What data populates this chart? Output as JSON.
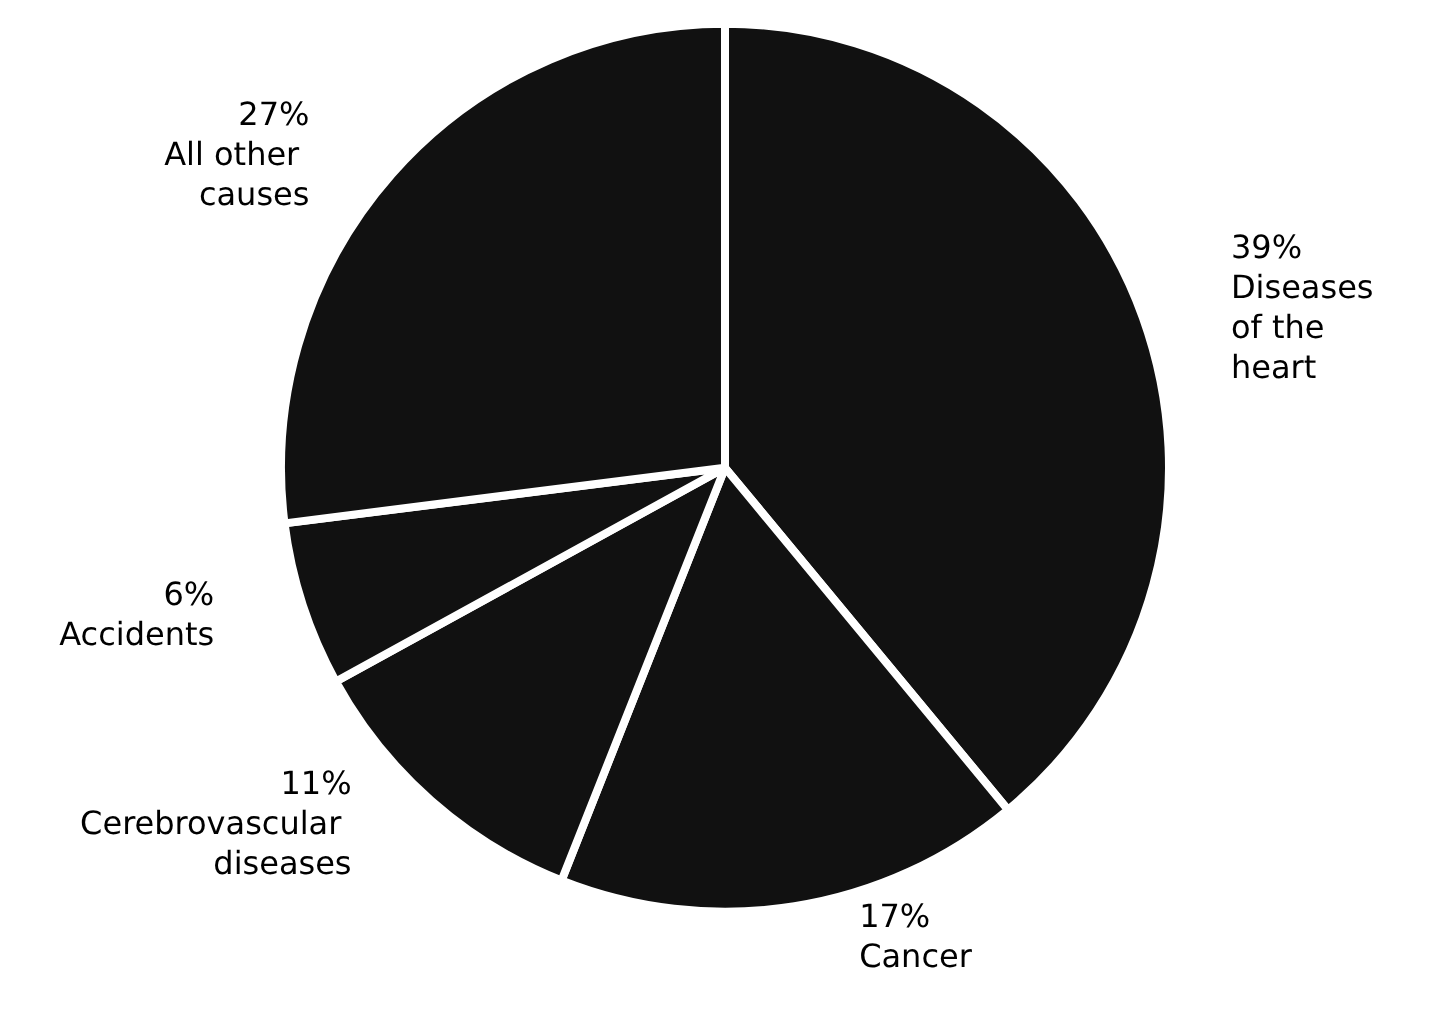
{
  "chart_data": {
    "type": "pie",
    "categories": [
      "Diseases of the heart",
      "Cancer",
      "Cerebrovascular diseases",
      "Accidents",
      "All other causes"
    ],
    "values": [
      39,
      17,
      11,
      6,
      27
    ],
    "value_labels": [
      "39%",
      "17%",
      "11%",
      "6%",
      "27%"
    ],
    "colors": [
      "#111111",
      "#111111",
      "#111111",
      "#111111",
      "#111111"
    ]
  }
}
